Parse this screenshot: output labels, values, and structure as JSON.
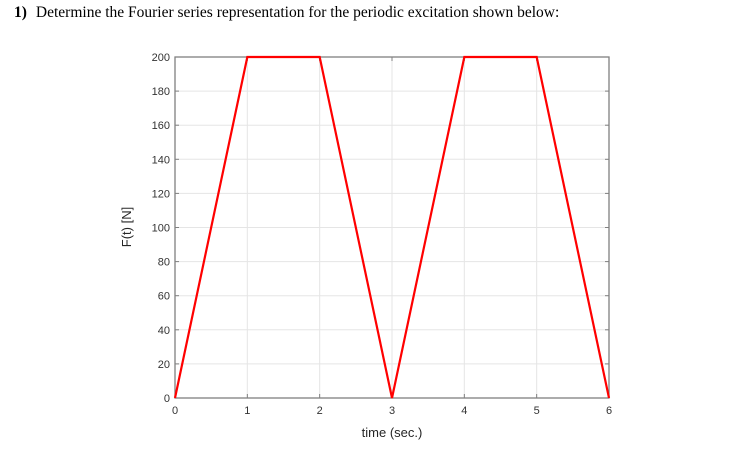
{
  "question": {
    "number": "1)",
    "text": "Determine the Fourier series representation for the periodic excitation shown below:"
  },
  "chart_data": {
    "type": "line",
    "title": "",
    "xlabel": "time (sec.)",
    "ylabel": "F(t) [N]",
    "xlim": [
      0,
      6
    ],
    "ylim": [
      0,
      200
    ],
    "xticks": [
      0,
      1,
      2,
      3,
      4,
      5,
      6
    ],
    "yticks": [
      0,
      20,
      40,
      60,
      80,
      100,
      120,
      140,
      160,
      180,
      200
    ],
    "grid": true,
    "legend": null,
    "series": [
      {
        "name": "F(t)",
        "color": "#ff0000",
        "x": [
          0,
          1,
          2,
          3,
          4,
          5,
          6
        ],
        "y": [
          0,
          200,
          200,
          0,
          200,
          200,
          0
        ]
      }
    ]
  },
  "colors": {
    "line": "#ff0000",
    "axis": "#808080",
    "grid": "#e5e5e5",
    "text": "#262626"
  }
}
